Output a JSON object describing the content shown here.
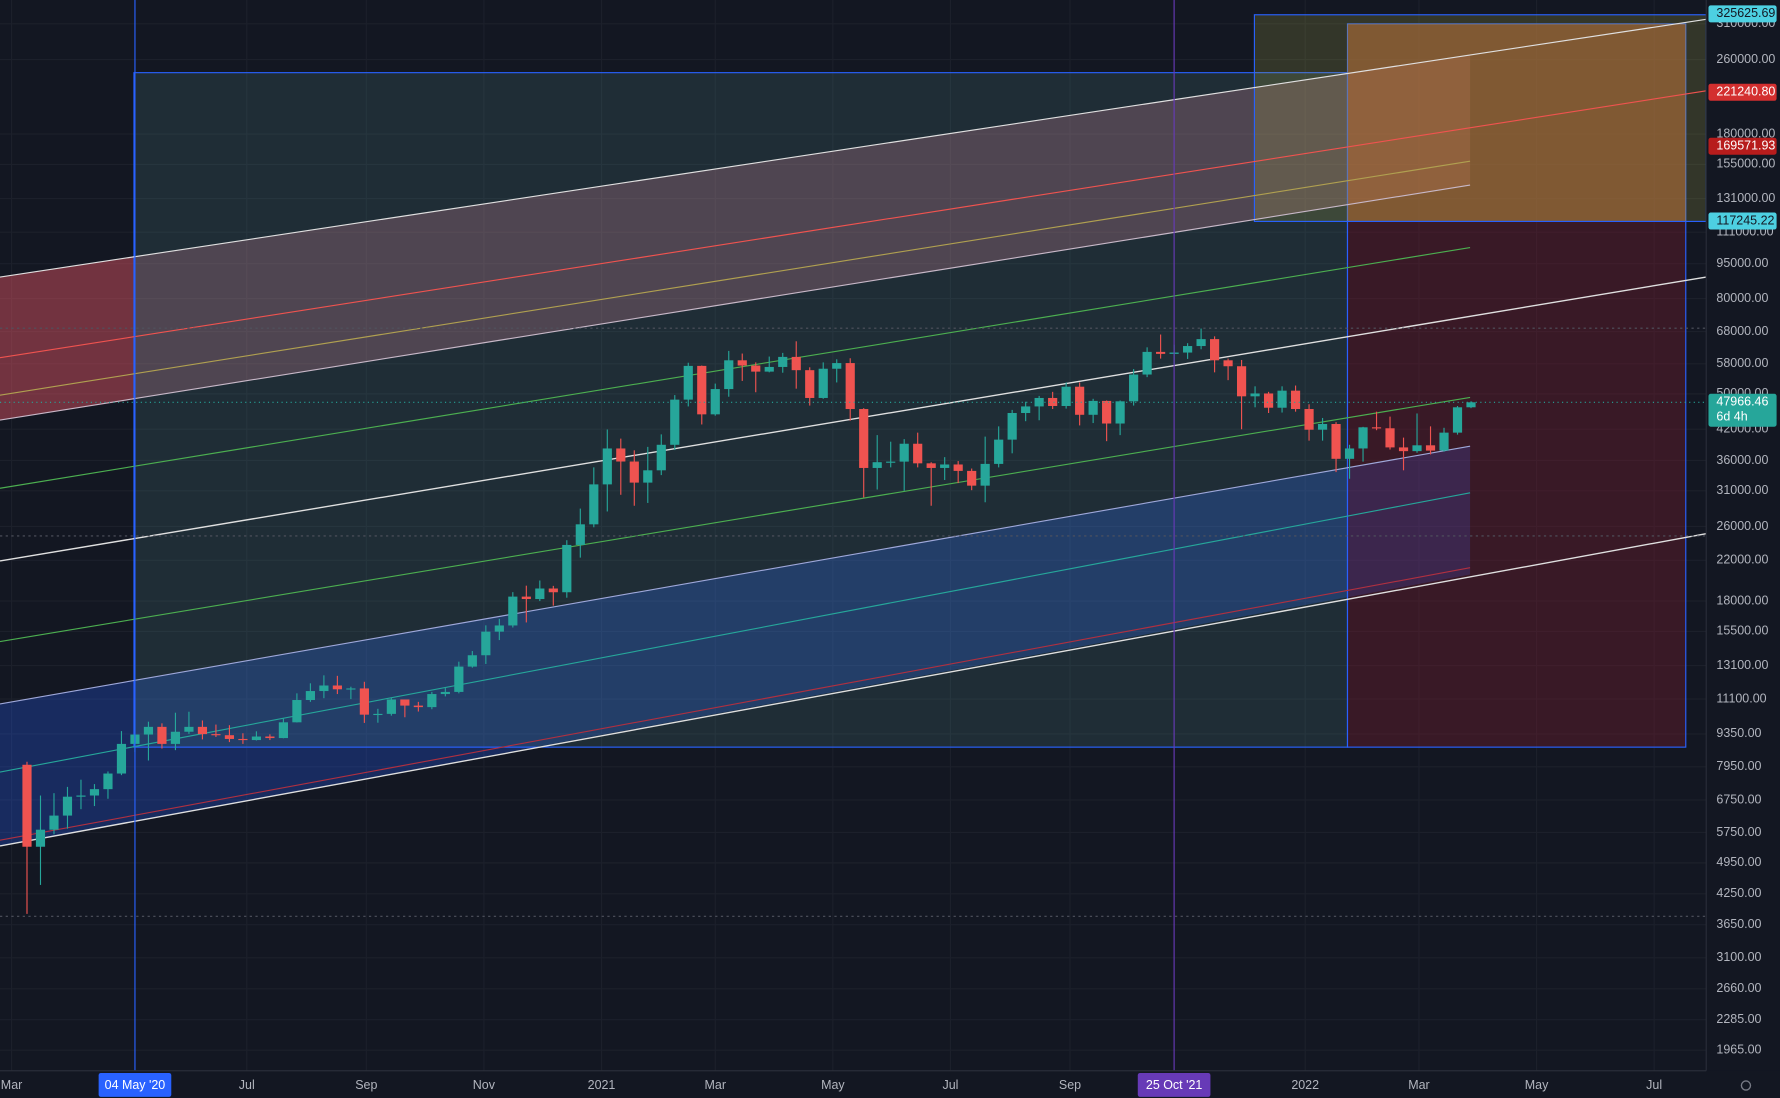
{
  "chart_data": {
    "type": "candlestick",
    "log_scale": true,
    "grid": true,
    "up_color": "#26a69a",
    "down_color": "#ef5350",
    "x": [
      "2020-03-09",
      "2020-03-16",
      "2020-03-23",
      "2020-03-30",
      "2020-04-06",
      "2020-04-13",
      "2020-04-20",
      "2020-04-27",
      "2020-05-04",
      "2020-05-11",
      "2020-05-18",
      "2020-05-25",
      "2020-06-01",
      "2020-06-08",
      "2020-06-15",
      "2020-06-22",
      "2020-06-29",
      "2020-07-06",
      "2020-07-13",
      "2020-07-20",
      "2020-07-27",
      "2020-08-03",
      "2020-08-10",
      "2020-08-17",
      "2020-08-24",
      "2020-08-31",
      "2020-09-07",
      "2020-09-14",
      "2020-09-21",
      "2020-09-28",
      "2020-10-05",
      "2020-10-12",
      "2020-10-19",
      "2020-10-26",
      "2020-11-02",
      "2020-11-09",
      "2020-11-16",
      "2020-11-23",
      "2020-11-30",
      "2020-12-07",
      "2020-12-14",
      "2020-12-21",
      "2020-12-28",
      "2021-01-04",
      "2021-01-11",
      "2021-01-18",
      "2021-01-25",
      "2021-02-01",
      "2021-02-08",
      "2021-02-15",
      "2021-02-22",
      "2021-03-01",
      "2021-03-08",
      "2021-03-15",
      "2021-03-22",
      "2021-03-29",
      "2021-04-05",
      "2021-04-12",
      "2021-04-19",
      "2021-04-26",
      "2021-05-03",
      "2021-05-10",
      "2021-05-17",
      "2021-05-24",
      "2021-05-31",
      "2021-06-07",
      "2021-06-14",
      "2021-06-21",
      "2021-06-28",
      "2021-07-05",
      "2021-07-12",
      "2021-07-19",
      "2021-07-26",
      "2021-08-02",
      "2021-08-09",
      "2021-08-16",
      "2021-08-23",
      "2021-08-30",
      "2021-09-06",
      "2021-09-13",
      "2021-09-20",
      "2021-09-27",
      "2021-10-04",
      "2021-10-11",
      "2021-10-18",
      "2021-10-25",
      "2021-11-01",
      "2021-11-08",
      "2021-11-15",
      "2021-11-22",
      "2021-11-29",
      "2021-12-06",
      "2021-12-13",
      "2021-12-20",
      "2021-12-27",
      "2022-01-03",
      "2022-01-10",
      "2022-01-17",
      "2022-01-24",
      "2022-01-31",
      "2022-02-07",
      "2022-02-14",
      "2022-02-21",
      "2022-02-28",
      "2022-03-07",
      "2022-03-14",
      "2022-03-21",
      "2022-03-28"
    ],
    "open": [
      8030,
      5360,
      5830,
      6250,
      6860,
      6900,
      7120,
      7690,
      8900,
      9320,
      9680,
      8900,
      9450,
      9680,
      9340,
      9290,
      9120,
      9070,
      9230,
      9160,
      9900,
      11050,
      11550,
      11870,
      11650,
      11700,
      10280,
      10320,
      11080,
      10750,
      10670,
      11380,
      11500,
      13030,
      13780,
      15480,
      15960,
      18400,
      18180,
      19150,
      18800,
      23740,
      26280,
      32000,
      38200,
      35820,
      32280,
      34300,
      38900,
      48600,
      57400,
      45200,
      51200,
      59000,
      57500,
      55800,
      57100,
      60000,
      56200,
      49000,
      56600,
      58200,
      46400,
      34700,
      35700,
      35800,
      39100,
      35500,
      34700,
      35300,
      34200,
      31800,
      35400,
      39900,
      45500,
      47000,
      49000,
      47100,
      51800,
      45100,
      48300,
      43200,
      48200,
      55000,
      61500,
      60900,
      61300,
      63300,
      65500,
      59000,
      57300,
      49400,
      50100,
      46700,
      50800,
      46400,
      41900,
      43100,
      36300,
      38200,
      42400,
      42200,
      38400,
      37700,
      38800,
      37800,
      41300,
      46800
    ],
    "high": [
      8150,
      6900,
      6980,
      7200,
      7460,
      7300,
      7770,
      9480,
      10070,
      9930,
      9850,
      10380,
      10430,
      9990,
      9790,
      9760,
      9380,
      9470,
      9330,
      10080,
      11420,
      12000,
      12480,
      12450,
      11800,
      12090,
      10580,
      11180,
      11030,
      10950,
      11500,
      11720,
      13350,
      14070,
      15970,
      16490,
      18810,
      19420,
      19920,
      19400,
      24300,
      28400,
      34800,
      41950,
      40100,
      37850,
      38500,
      40950,
      49700,
      58300,
      57500,
      52600,
      61800,
      61000,
      58400,
      60100,
      61200,
      64800,
      57000,
      58400,
      59300,
      59600,
      46600,
      40800,
      39500,
      40000,
      41300,
      35700,
      36600,
      35900,
      34600,
      40500,
      42600,
      46200,
      48100,
      49500,
      50500,
      52900,
      52900,
      48800,
      48400,
      48400,
      56500,
      62900,
      67000,
      63700,
      64200,
      69000,
      66400,
      59500,
      59100,
      51900,
      50500,
      51900,
      52100,
      47500,
      44400,
      43500,
      38900,
      42500,
      45800,
      44700,
      40300,
      45400,
      42600,
      42300,
      47100,
      48200
    ],
    "low": [
      3850,
      4440,
      5700,
      5860,
      6450,
      6550,
      6790,
      7630,
      8550,
      8200,
      8700,
      8630,
      9350,
      9100,
      9210,
      8980,
      8900,
      9050,
      9070,
      9150,
      9890,
      10950,
      11150,
      11380,
      11100,
      9870,
      9880,
      10230,
      10150,
      10440,
      10560,
      11250,
      11420,
      12960,
      13200,
      14850,
      15800,
      16200,
      18000,
      17600,
      18300,
      22300,
      25900,
      28000,
      30400,
      28800,
      29200,
      33500,
      37900,
      47000,
      43000,
      44900,
      49300,
      53300,
      50400,
      55600,
      55500,
      51300,
      47200,
      48800,
      52900,
      43800,
      30000,
      31200,
      34800,
      31000,
      34800,
      28800,
      32700,
      32200,
      31100,
      29300,
      34800,
      37300,
      43700,
      43900,
      46400,
      46500,
      42800,
      43300,
      39600,
      40800,
      47200,
      54300,
      59500,
      57800,
      59400,
      62300,
      55600,
      53500,
      42000,
      46800,
      45500,
      45600,
      45800,
      39700,
      39700,
      34000,
      32900,
      35800,
      41800,
      38000,
      34300,
      37400,
      37100,
      37600,
      40900,
      46600
    ],
    "close": [
      5360,
      5830,
      6250,
      6860,
      6900,
      7120,
      7690,
      8900,
      9320,
      9680,
      8900,
      9450,
      9680,
      9340,
      9290,
      9120,
      9070,
      9230,
      9160,
      9900,
      11050,
      11550,
      11870,
      11650,
      11700,
      10280,
      10320,
      11080,
      10750,
      10670,
      11380,
      11500,
      13030,
      13780,
      15480,
      15960,
      18400,
      18180,
      19150,
      18800,
      23740,
      26280,
      32000,
      38200,
      35820,
      32280,
      34300,
      38900,
      48600,
      57400,
      45200,
      51200,
      59000,
      57500,
      55800,
      57100,
      60000,
      56200,
      49000,
      56600,
      58200,
      46400,
      34700,
      35700,
      35800,
      39100,
      35500,
      34700,
      35300,
      34200,
      31800,
      35400,
      39900,
      45500,
      47000,
      49000,
      47100,
      51800,
      45100,
      48300,
      43200,
      48200,
      55000,
      61500,
      60900,
      61300,
      63300,
      65500,
      59000,
      57300,
      49400,
      50100,
      46700,
      50800,
      46400,
      41900,
      43100,
      36300,
      38200,
      42400,
      42200,
      38400,
      37700,
      38800,
      37800,
      41300,
      46800,
      47966.46
    ],
    "xlim": [
      "2020-02-24",
      "2022-07-28"
    ],
    "xticks": [
      {
        "value": "2020-03-01",
        "label": "Mar"
      },
      {
        "value": "2020-07-01",
        "label": "Jul"
      },
      {
        "value": "2020-09-01",
        "label": "Sep"
      },
      {
        "value": "2020-11-01",
        "label": "Nov"
      },
      {
        "value": "2021-01-01",
        "label": "2021"
      },
      {
        "value": "2021-03-01",
        "label": "Mar"
      },
      {
        "value": "2021-05-01",
        "label": "May"
      },
      {
        "value": "2021-07-01",
        "label": "Jul"
      },
      {
        "value": "2021-09-01",
        "label": "Sep"
      },
      {
        "value": "2022-01-01",
        "label": "2022"
      },
      {
        "value": "2022-03-01",
        "label": "Mar"
      },
      {
        "value": "2022-05-01",
        "label": "May"
      },
      {
        "value": "2022-07-01",
        "label": "Jul"
      }
    ],
    "marker_lines": [
      {
        "value": "2020-05-04",
        "label": "04 May '20",
        "color": "#2962ff"
      },
      {
        "value": "2021-10-25",
        "label": "25 Oct '21",
        "color": "#673ab7"
      }
    ],
    "ylim": [
      1776,
      348700
    ],
    "yticks": [
      {
        "value": 310000,
        "label": "310000.00"
      },
      {
        "value": 260000,
        "label": "260000.00"
      },
      {
        "value": 180000,
        "label": "180000.00"
      },
      {
        "value": 155000,
        "label": "155000.00"
      },
      {
        "value": 131000,
        "label": "131000.00"
      },
      {
        "value": 111000,
        "label": "111000.00"
      },
      {
        "value": 95000,
        "label": "95000.00"
      },
      {
        "value": 80000,
        "label": "80000.00"
      },
      {
        "value": 68000,
        "label": "68000.00"
      },
      {
        "value": 58000,
        "label": "58000.00"
      },
      {
        "value": 50000,
        "label": "50000.00"
      },
      {
        "value": 42000,
        "label": "42000.00"
      },
      {
        "value": 36000,
        "label": "36000.00"
      },
      {
        "value": 31000,
        "label": "31000.00"
      },
      {
        "value": 26000,
        "label": "26000.00"
      },
      {
        "value": 22000,
        "label": "22000.00"
      },
      {
        "value": 18000,
        "label": "18000.00"
      },
      {
        "value": 15500,
        "label": "15500.00"
      },
      {
        "value": 13100,
        "label": "13100.00"
      },
      {
        "value": 11100,
        "label": "11100.00"
      },
      {
        "value": 9350,
        "label": "9350.00"
      },
      {
        "value": 7950,
        "label": "7950.00"
      },
      {
        "value": 6750,
        "label": "6750.00"
      },
      {
        "value": 5750,
        "label": "5750.00"
      },
      {
        "value": 4950,
        "label": "4950.00"
      },
      {
        "value": 4250,
        "label": "4250.00"
      },
      {
        "value": 3650,
        "label": "3650.00"
      },
      {
        "value": 3100,
        "label": "3100.00"
      },
      {
        "value": 2660,
        "label": "2660.00"
      },
      {
        "value": 2285,
        "label": "2285.00"
      },
      {
        "value": 1965,
        "label": "1965.00"
      }
    ],
    "price_labels": [
      {
        "value": 325625.69,
        "label": "325625.69",
        "color": "#4dd0e1",
        "text_color": "#131722"
      },
      {
        "value": 221240.8,
        "label": "221240.80",
        "color": "#d32f2f",
        "text_color": "#ffffff"
      },
      {
        "value": 169571.93,
        "label": "169571.93",
        "color": "#b71c1c",
        "text_color": "#ffffff"
      },
      {
        "value": 117245.22,
        "label": "117245.22",
        "color": "#4dd0e1",
        "text_color": "#131722"
      }
    ],
    "last_price": {
      "value": 47966.46,
      "label": "47966.46",
      "countdown": "6d 4h",
      "color": "#26a69a"
    }
  }
}
